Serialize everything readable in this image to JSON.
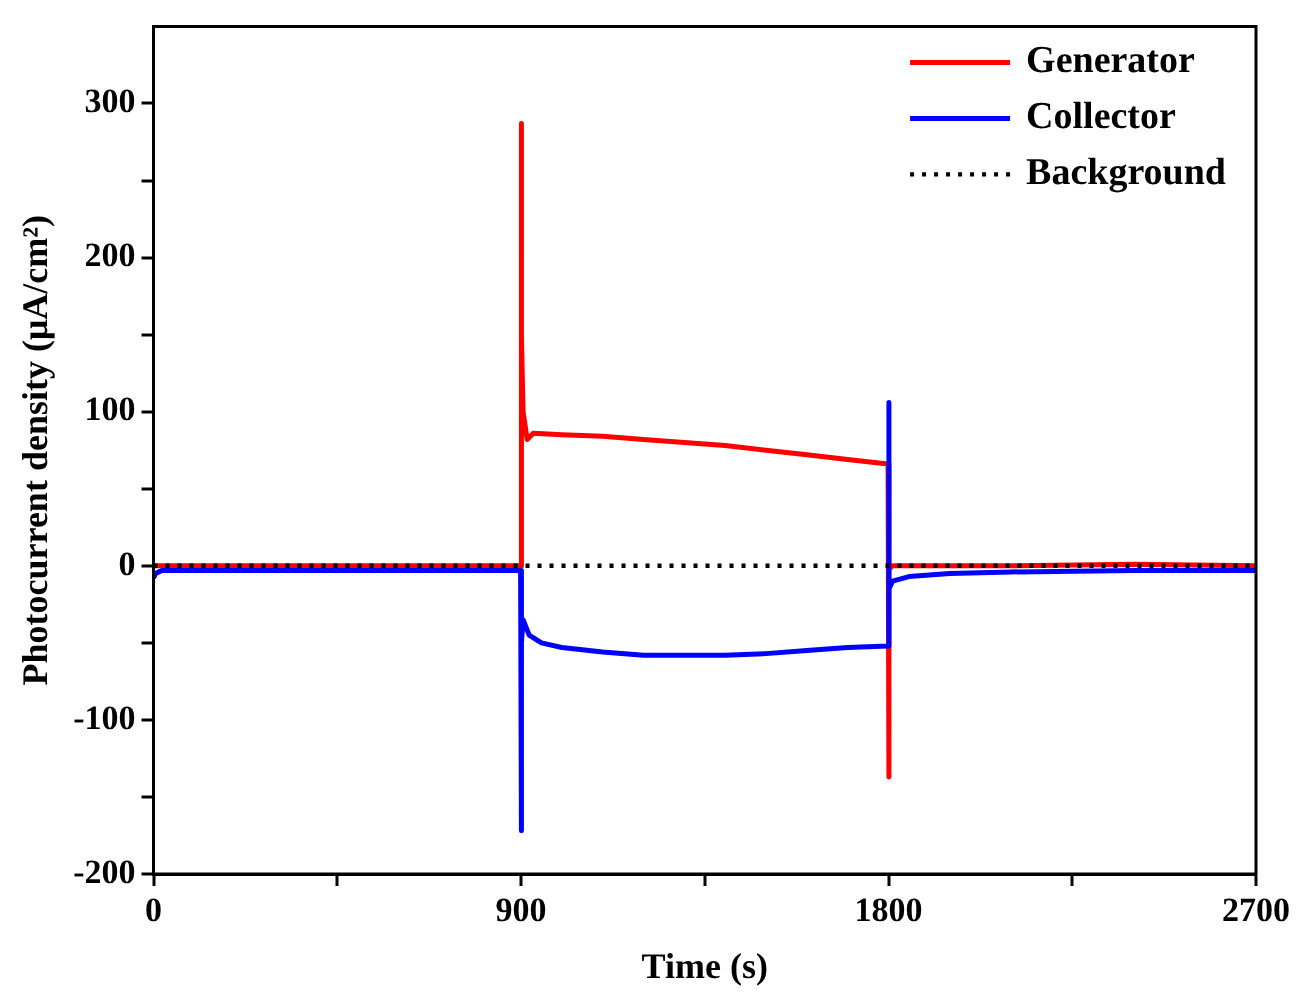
{
  "chart_data": {
    "type": "line",
    "xlabel": "Time (s)",
    "ylabel": "Photocurrent density (μA/cm²)",
    "xlim": [
      0,
      2700
    ],
    "xticks": [
      0,
      {
        "value": 450,
        "label": null
      },
      900,
      {
        "value": 1350,
        "label": null
      },
      1800,
      {
        "value": 2250,
        "label": null
      },
      2700
    ],
    "ylim": [
      -200,
      350
    ],
    "yticks": [
      -200,
      {
        "value": -150,
        "label": null
      },
      -100,
      {
        "value": -50,
        "label": null
      },
      0,
      {
        "value": 50,
        "label": null
      },
      100,
      {
        "value": 150,
        "label": null
      },
      200,
      {
        "value": 250,
        "label": null
      },
      300
    ],
    "grid": false,
    "legend": "top right",
    "marker": "none",
    "series": [
      {
        "name": "Generator",
        "color": "#ff0000",
        "line_style": "solid",
        "x": [
          0,
          100,
          300,
          600,
          899,
          900,
          902,
          905,
          915,
          930,
          1000,
          1100,
          1200,
          1300,
          1400,
          1500,
          1600,
          1700,
          1799,
          1800,
          1802,
          1810,
          1900,
          2100,
          2400,
          2700
        ],
        "values": [
          0,
          0,
          0,
          0,
          0,
          287,
          150,
          100,
          82,
          86,
          85,
          84,
          82,
          80,
          78,
          75,
          72,
          69,
          66,
          -137,
          -2,
          0,
          0,
          0,
          1,
          0
        ]
      },
      {
        "name": "Collector",
        "color": "#0000ff",
        "line_style": "solid",
        "x": [
          0,
          5,
          20,
          100,
          300,
          600,
          899,
          900,
          902,
          905,
          920,
          950,
          1000,
          1100,
          1200,
          1300,
          1400,
          1500,
          1600,
          1700,
          1799,
          1800,
          1802,
          1810,
          1850,
          1950,
          2100,
          2400,
          2700
        ],
        "values": [
          -8,
          -5,
          -3,
          -3,
          -3,
          -3,
          -3,
          -172,
          -50,
          -35,
          -45,
          -50,
          -53,
          -56,
          -58,
          -58,
          -58,
          -57,
          -55,
          -53,
          -52,
          106,
          -15,
          -10,
          -7,
          -5,
          -4,
          -3,
          -3
        ]
      },
      {
        "name": "Background",
        "color": "#000000",
        "line_style": "dotted",
        "x": [
          0,
          2700
        ],
        "values": [
          0,
          0
        ]
      }
    ]
  }
}
